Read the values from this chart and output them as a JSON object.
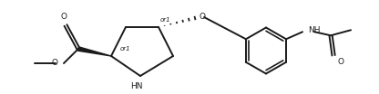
{
  "bg_color": "#ffffff",
  "line_color": "#1a1a1a",
  "line_width": 1.4,
  "font_size": 6.5,
  "figsize": [
    4.16,
    1.04
  ],
  "dpi": 100,
  "xlim": [
    0,
    4.16
  ],
  "ylim": [
    0,
    1.04
  ]
}
